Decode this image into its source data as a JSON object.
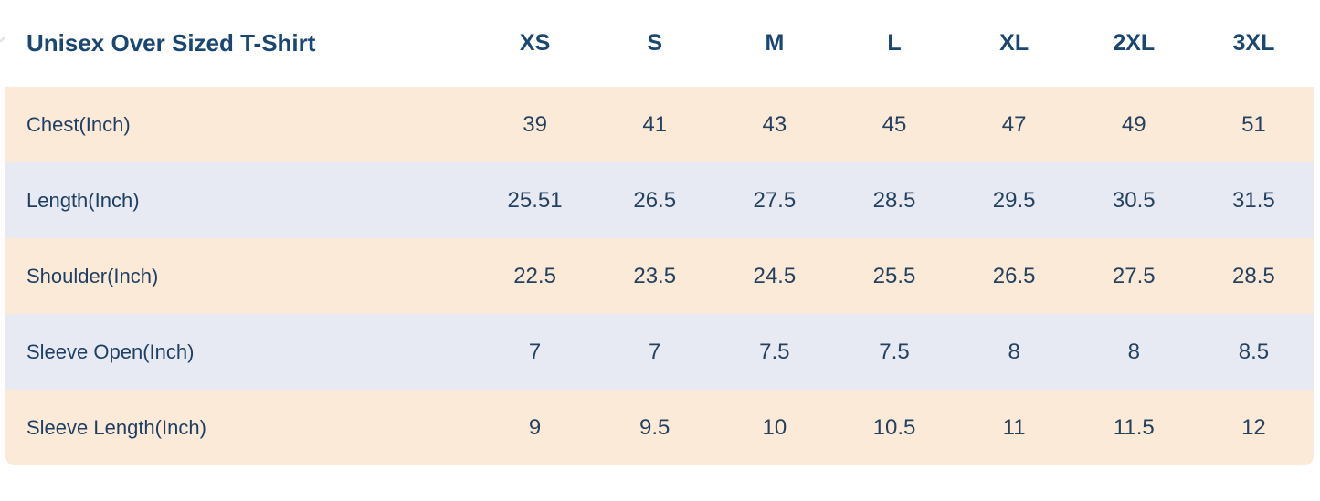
{
  "colors": {
    "row_peach": "#fcead9",
    "row_blue": "#e7eaf2",
    "title_navy": "#1a4672",
    "body_navy": "#24415f",
    "background": "#ffffff"
  },
  "chart_data": {
    "type": "table",
    "title": "Unisex Over Sized T-Shirt",
    "columns": [
      "XS",
      "S",
      "M",
      "L",
      "XL",
      "2XL",
      "3XL"
    ],
    "rows": [
      {
        "label": "Chest(Inch)",
        "values": [
          "39",
          "41",
          "43",
          "45",
          "47",
          "49",
          "51"
        ]
      },
      {
        "label": "Length(Inch)",
        "values": [
          "25.51",
          "26.5",
          "27.5",
          "28.5",
          "29.5",
          "30.5",
          "31.5"
        ]
      },
      {
        "label": "Shoulder(Inch)",
        "values": [
          "22.5",
          "23.5",
          "24.5",
          "25.5",
          "26.5",
          "27.5",
          "28.5"
        ]
      },
      {
        "label": "Sleeve Open(Inch)",
        "values": [
          "7",
          "7",
          "7.5",
          "7.5",
          "8",
          "8",
          "8.5"
        ]
      },
      {
        "label": "Sleeve Length(Inch)",
        "values": [
          "9",
          "9.5",
          "10",
          "10.5",
          "11",
          "11.5",
          "12"
        ]
      }
    ],
    "layout": {
      "header_row": "sizes across top",
      "first_column": "measurement labels",
      "row_striping": "alternating peach and blue-gray bands",
      "units": "inches"
    }
  }
}
